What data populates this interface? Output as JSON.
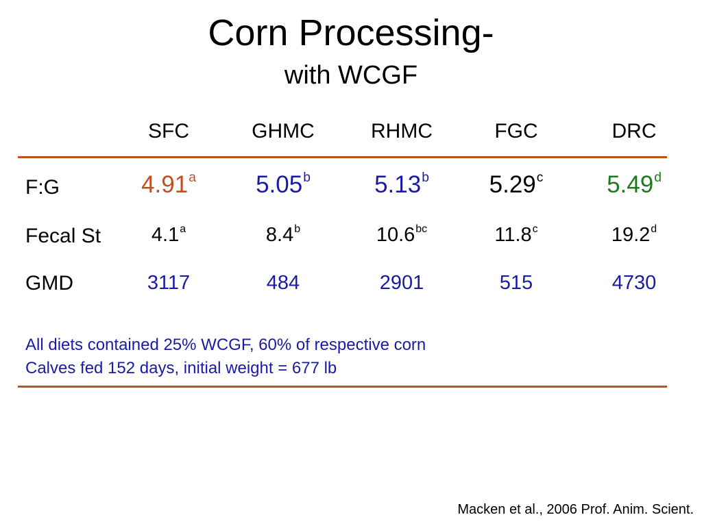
{
  "slide": {
    "title": "Corn Processing-",
    "subtitle": "with WCGF",
    "columns": [
      "SFC",
      "GHMC",
      "RHMC",
      "FGC",
      "DRC"
    ],
    "rows": [
      {
        "label": "F:G",
        "cells": [
          {
            "value": "4.91",
            "sup": "a",
            "color": "#c0501e"
          },
          {
            "value": "5.05",
            "sup": "b",
            "color": "#1a1aa8"
          },
          {
            "value": "5.13",
            "sup": "b",
            "color": "#1a1aa8"
          },
          {
            "value": "5.29",
            "sup": "c",
            "color": "#000000"
          },
          {
            "value": "5.49",
            "sup": "d",
            "color": "#1e7a1e"
          }
        ]
      },
      {
        "label": "Fecal St",
        "cells": [
          {
            "value": "4.1",
            "sup": "a",
            "color": "#000000"
          },
          {
            "value": "8.4",
            "sup": "b",
            "color": "#000000"
          },
          {
            "value": "10.6",
            "sup": "bc",
            "color": "#000000"
          },
          {
            "value": "11.8",
            "sup": "c",
            "color": "#000000"
          },
          {
            "value": "19.2",
            "sup": "d",
            "color": "#000000"
          }
        ]
      },
      {
        "label": "GMD",
        "cells": [
          {
            "value": "3117",
            "sup": "",
            "color": "#1a1aa8"
          },
          {
            "value": "484",
            "sup": "",
            "color": "#1a1aa8"
          },
          {
            "value": "2901",
            "sup": "",
            "color": "#1a1aa8"
          },
          {
            "value": "515",
            "sup": "",
            "color": "#1a1aa8"
          },
          {
            "value": "4730",
            "sup": "",
            "color": "#1a1aa8"
          }
        ]
      }
    ],
    "notes": [
      "All diets contained 25% WCGF, 60% of respective corn",
      "Calves fed 152 days, initial weight = 677 lb"
    ],
    "note_color": "#1a1aa8",
    "rule_color": "#c0501e",
    "citation": "Macken et al., 2006 Prof. Anim. Scient."
  }
}
